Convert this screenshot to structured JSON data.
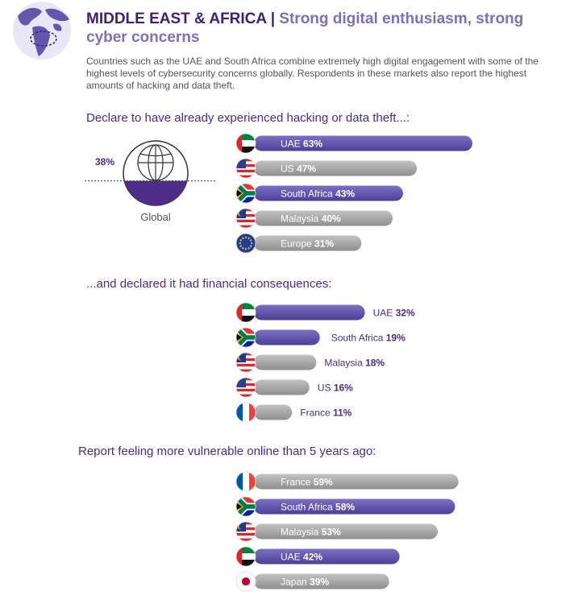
{
  "header": {
    "title_bold": "MIDDLE EAST & AFRICA |",
    "title_light": "Strong digital enthusiasm, strong cyber concerns",
    "intro": "Countries such as the UAE and South Africa combine extremely high digital engagement with some of the highest levels of cybersecurity concerns globally. Respondents in these markets also report the highest amounts of hacking and data theft."
  },
  "sections": [
    {
      "title": "Declare to have already experienced hacking or data theft...:"
    },
    {
      "title": "...and declared it had financial consequences:"
    },
    {
      "title": "Report feeling more vulnerable online than 5 years ago:"
    }
  ],
  "global_stat": {
    "value": "38%",
    "label": "Global",
    "fraction": 0.38
  },
  "colors": {
    "highlight": "#6257aa",
    "neutral": "#a8a8a8",
    "accent_text": "#4a2d82"
  },
  "chart_data": [
    {
      "type": "bar",
      "title": "Declare to have already experienced hacking or data theft...:",
      "categories": [
        "UAE",
        "US",
        "South Africa",
        "Malaysia",
        "Europe"
      ],
      "values": [
        63,
        47,
        43,
        40,
        31
      ],
      "labels": [
        "63%",
        "47%",
        "43%",
        "40%",
        "31%"
      ],
      "flags": [
        "uae",
        "us",
        "south-africa",
        "malaysia",
        "eu"
      ],
      "highlight": [
        true,
        false,
        true,
        false,
        false
      ],
      "label_position": "inside",
      "xlim": [
        0,
        100
      ]
    },
    {
      "type": "bar",
      "title": "...and declared it had financial consequences:",
      "categories": [
        "UAE",
        "South Africa",
        "Malaysia",
        "US",
        "France"
      ],
      "values": [
        32,
        19,
        18,
        16,
        11
      ],
      "labels": [
        "32%",
        "19%",
        "18%",
        "16%",
        "11%"
      ],
      "flags": [
        "uae",
        "south-africa",
        "malaysia",
        "us",
        "france"
      ],
      "highlight": [
        true,
        true,
        false,
        false,
        false
      ],
      "label_position": "outside",
      "xlim": [
        0,
        100
      ]
    },
    {
      "type": "bar",
      "title": "Report feeling more vulnerable online than 5 years ago:",
      "categories": [
        "France",
        "South Africa",
        "Malaysia",
        "UAE",
        "Japan"
      ],
      "values": [
        59,
        58,
        53,
        42,
        39
      ],
      "labels": [
        "59%",
        "58%",
        "53%",
        "42%",
        "39%"
      ],
      "flags": [
        "france",
        "south-africa",
        "malaysia",
        "uae",
        "japan"
      ],
      "highlight": [
        false,
        true,
        false,
        true,
        false
      ],
      "label_position": "inside",
      "xlim": [
        0,
        100
      ]
    }
  ]
}
